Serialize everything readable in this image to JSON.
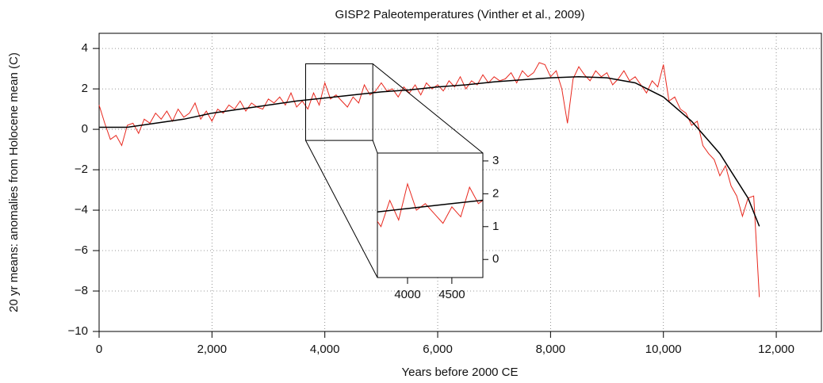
{
  "chart_data": {
    "type": "line",
    "title": "GISP2 Paleotemperatures (Vinther et al., 2009)",
    "x_label": "Years before 2000 CE",
    "y_label": "20 yr means: anomalies from Holocene mean (C)",
    "xlim": [
      0,
      12800
    ],
    "ylim": [
      -10,
      4.75
    ],
    "xticks": [
      0,
      {
        "value": 2000,
        "label": "2,000"
      },
      {
        "value": 4000,
        "label": "4,000"
      },
      {
        "value": 6000,
        "label": "6,000"
      },
      {
        "value": 8000,
        "label": "8,000"
      },
      {
        "value": 10000,
        "label": "10,000"
      },
      {
        "value": 12000,
        "label": "12,000"
      }
    ],
    "yticks": [
      {
        "value": -10,
        "label": "−10"
      },
      {
        "value": -8,
        "label": "−8"
      },
      {
        "value": -6,
        "label": "−6"
      },
      {
        "value": -4,
        "label": "−4"
      },
      {
        "value": -2,
        "label": "−2"
      },
      0,
      2,
      4
    ],
    "grid": true,
    "series": [
      {
        "color": "#e8281e",
        "x": [
          0,
          100,
          200,
          300,
          400,
          500,
          600,
          700,
          800,
          900,
          1000,
          1100,
          1200,
          1300,
          1400,
          1500,
          1600,
          1700,
          1800,
          1900,
          2000,
          2100,
          2200,
          2300,
          2400,
          2500,
          2600,
          2700,
          2800,
          2900,
          3000,
          3100,
          3200,
          3300,
          3400,
          3500,
          3600,
          3700,
          3800,
          3900,
          4000,
          4100,
          4200,
          4300,
          4400,
          4500,
          4600,
          4700,
          4800,
          4900,
          5000,
          5100,
          5200,
          5300,
          5400,
          5500,
          5600,
          5700,
          5800,
          5900,
          6000,
          6100,
          6200,
          6300,
          6400,
          6500,
          6600,
          6700,
          6800,
          6900,
          7000,
          7100,
          7200,
          7300,
          7400,
          7500,
          7600,
          7700,
          7800,
          7900,
          8000,
          8100,
          8200,
          8300,
          8400,
          8500,
          8600,
          8700,
          8800,
          8900,
          9000,
          9100,
          9200,
          9300,
          9400,
          9500,
          9600,
          9700,
          9800,
          9900,
          10000,
          10100,
          10200,
          10300,
          10400,
          10500,
          10600,
          10700,
          10800,
          10900,
          11000,
          11100,
          11200,
          11300,
          11400,
          11500,
          11600,
          11700
        ],
        "values": [
          1.2,
          0.3,
          -0.5,
          -0.3,
          -0.8,
          0.2,
          0.3,
          -0.2,
          0.5,
          0.3,
          0.8,
          0.5,
          0.9,
          0.4,
          1.0,
          0.6,
          0.8,
          1.3,
          0.5,
          0.9,
          0.4,
          1.0,
          0.8,
          1.2,
          1.0,
          1.4,
          0.9,
          1.3,
          1.1,
          1.0,
          1.5,
          1.3,
          1.6,
          1.2,
          1.8,
          1.1,
          1.4,
          1.0,
          1.8,
          1.2,
          2.3,
          1.5,
          1.7,
          1.4,
          1.1,
          1.6,
          1.3,
          2.2,
          1.7,
          1.9,
          2.3,
          1.9,
          2.0,
          1.6,
          2.1,
          1.8,
          2.2,
          1.7,
          2.3,
          2.0,
          2.2,
          1.9,
          2.4,
          2.1,
          2.6,
          2.0,
          2.4,
          2.2,
          2.7,
          2.3,
          2.6,
          2.4,
          2.5,
          2.8,
          2.3,
          2.9,
          2.6,
          2.8,
          3.3,
          3.2,
          2.6,
          2.9,
          2.0,
          0.3,
          2.5,
          3.1,
          2.7,
          2.4,
          2.9,
          2.6,
          2.8,
          2.2,
          2.5,
          2.9,
          2.4,
          2.6,
          2.2,
          1.8,
          2.4,
          2.1,
          3.2,
          1.4,
          1.6,
          1.0,
          0.8,
          0.2,
          0.4,
          -0.8,
          -1.2,
          -1.5,
          -2.3,
          -1.8,
          -2.8,
          -3.3,
          -4.3,
          -3.4,
          -3.3,
          -8.3
        ]
      },
      {
        "color": "#000000",
        "x": [
          0,
          500,
          1000,
          1500,
          2000,
          2500,
          3000,
          3500,
          4000,
          4500,
          5000,
          5500,
          6000,
          6500,
          7000,
          7500,
          8000,
          8500,
          9000,
          9500,
          10000,
          10500,
          11000,
          11500,
          11700
        ],
        "values": [
          0.1,
          0.1,
          0.3,
          0.5,
          0.8,
          1.0,
          1.2,
          1.4,
          1.55,
          1.7,
          1.85,
          1.95,
          2.1,
          2.2,
          2.35,
          2.45,
          2.55,
          2.6,
          2.55,
          2.3,
          1.6,
          0.4,
          -1.2,
          -3.4,
          -4.8
        ]
      }
    ],
    "inset": {
      "xlim": [
        3660,
        4850
      ],
      "ylim": [
        -0.55,
        3.24
      ],
      "xticks": [
        4000,
        4500
      ],
      "yticks": [
        0,
        1,
        2,
        3
      ]
    }
  }
}
